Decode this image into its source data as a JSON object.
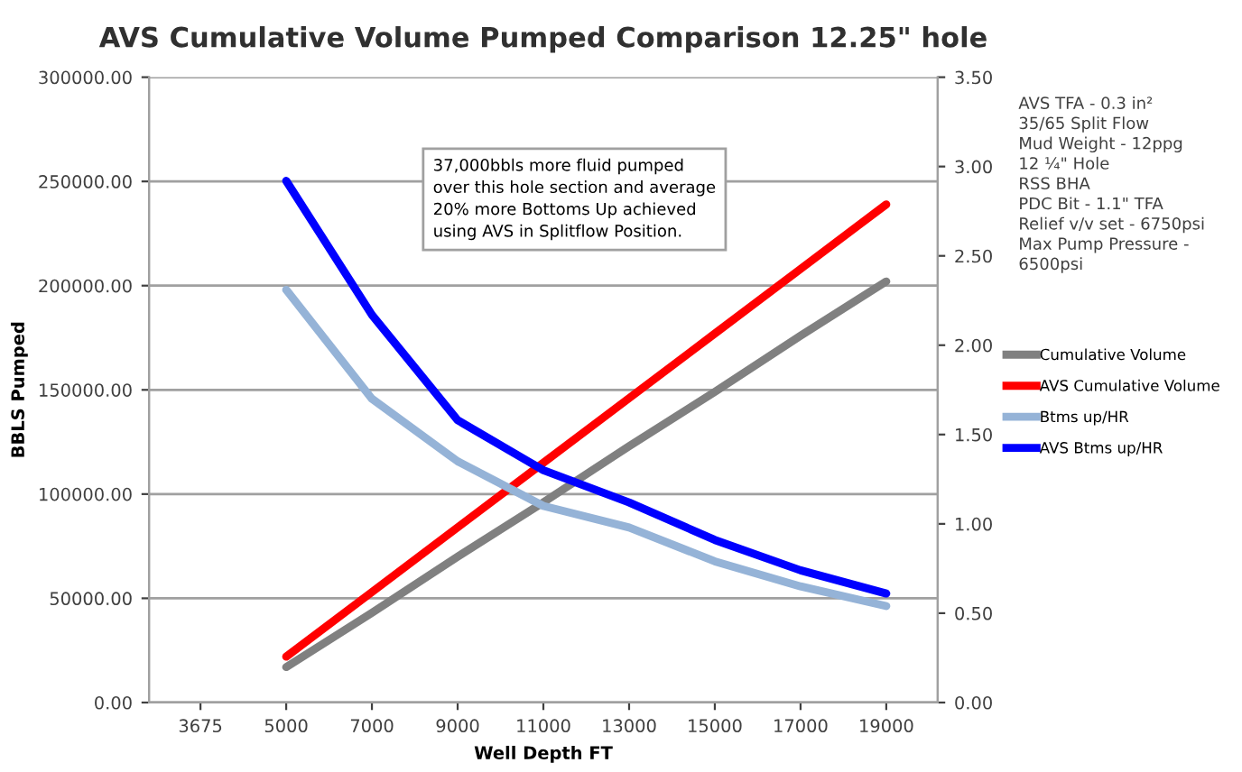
{
  "chart_data": {
    "type": "line",
    "title": "AVS Cumulative Volume Pumped Comparison 12.25\" hole",
    "xlabel": "Well Depth FT",
    "ylabel": "BBLS Pumped",
    "categories": [
      "3675",
      "5000",
      "7000",
      "9000",
      "11000",
      "13000",
      "15000",
      "17000",
      "19000"
    ],
    "series": [
      {
        "name": "Cumulative Volume",
        "color": "#808080",
        "values": [
          null,
          17000,
          43000,
          70000,
          96000,
          123000,
          149000,
          176000,
          202000
        ]
      },
      {
        "name": "AVS Cumulative Volume",
        "color": "#ff0000",
        "values": [
          null,
          22000,
          53000,
          84000,
          115000,
          146000,
          177000,
          208000,
          239000
        ]
      },
      {
        "name": "Btms up/HR",
        "color": "#95b3d7",
        "axis": "y2",
        "values": [
          null,
          2.31,
          1.7,
          1.35,
          1.1,
          0.98,
          0.79,
          0.65,
          0.54
        ]
      },
      {
        "name": "AVS Btms up/HR",
        "color": "#0000ff",
        "axis": "y2",
        "values": [
          null,
          2.92,
          2.17,
          1.58,
          1.3,
          1.12,
          0.91,
          0.74,
          0.61
        ]
      }
    ],
    "ylim": [
      0,
      300000
    ],
    "yticks": [
      {
        "value": 0,
        "label": "0.00"
      },
      {
        "value": 50000,
        "label": "50000.00"
      },
      {
        "value": 100000,
        "label": "100000.00"
      },
      {
        "value": 150000,
        "label": "150000.00"
      },
      {
        "value": 200000,
        "label": "200000.00"
      },
      {
        "value": 250000,
        "label": "250000.00"
      },
      {
        "value": 300000,
        "label": "300000.00"
      }
    ],
    "y2lim": [
      0,
      3.5
    ],
    "y2ticks": [
      {
        "value": 0,
        "label": "0.00"
      },
      {
        "value": 0.5,
        "label": "0.50"
      },
      {
        "value": 1,
        "label": "1.00"
      },
      {
        "value": 1.5,
        "label": "1.50"
      },
      {
        "value": 2,
        "label": "2.00"
      },
      {
        "value": 2.5,
        "label": "2.50"
      },
      {
        "value": 3,
        "label": "3.00"
      },
      {
        "value": 3.5,
        "label": "3.50"
      }
    ],
    "grid": "y",
    "legend": "right",
    "marker": "none",
    "line_style": "solid",
    "annotations": [
      "37,000bbls more fluid pumped\nover this hole section and average\n20% more Bottoms Up achieved\nusing AVS in Splitflow Position.",
      "AVS TFA - 0.3 in²\n35/65 Split Flow\nMud Weight - 12ppg\n12 ¼\" Hole\nRSS BHA\nPDC Bit - 1.1\" TFA\nRelief v/v set - 6750psi\nMax Pump Pressure -\n6500psi"
    ]
  }
}
